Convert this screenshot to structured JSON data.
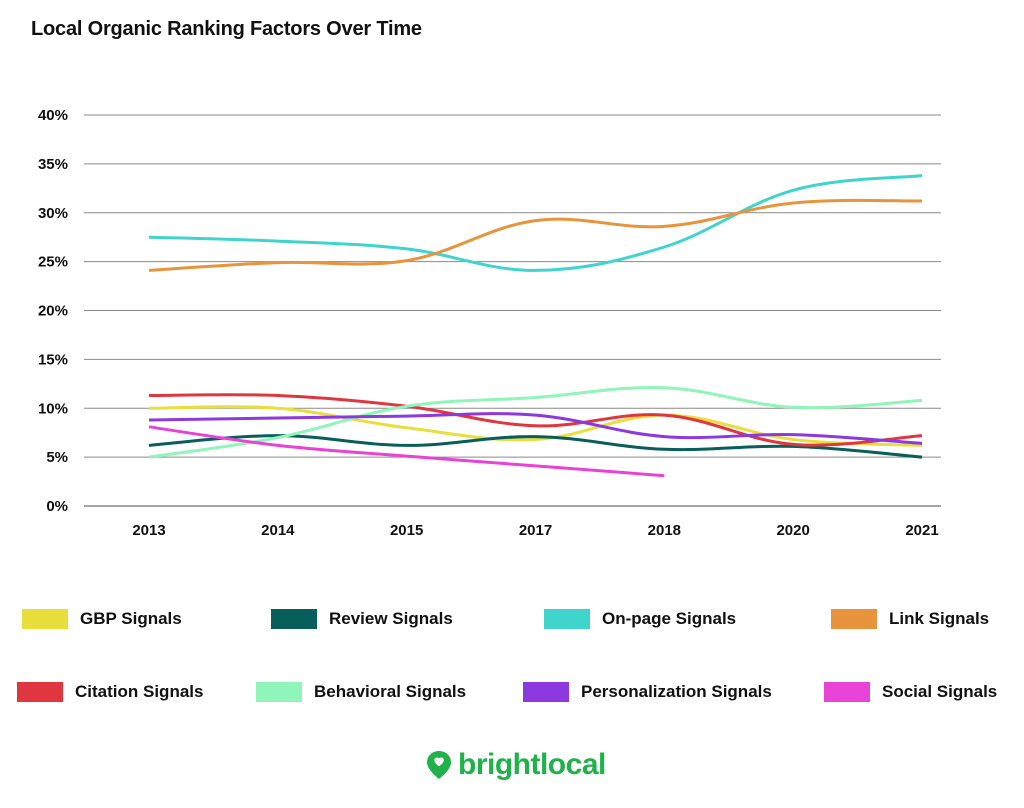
{
  "chart_data": {
    "type": "line",
    "title": "Local Organic Ranking Factors Over Time",
    "xlabel": "",
    "ylabel": "",
    "ylim": [
      0,
      40
    ],
    "y_ticks": [
      0,
      5,
      10,
      15,
      20,
      25,
      30,
      35,
      40
    ],
    "y_tick_labels": [
      "0%",
      "5%",
      "10%",
      "15%",
      "20%",
      "25%",
      "30%",
      "35%",
      "40%"
    ],
    "categories": [
      "2013",
      "2014",
      "2015",
      "2017",
      "2018",
      "2020",
      "2021"
    ],
    "grid": true,
    "legend_position": "bottom",
    "series": [
      {
        "name": "GBP Signals",
        "color": "#e8de3c",
        "values": [
          10,
          10,
          8,
          6.8,
          9.3,
          6.8,
          6.2
        ]
      },
      {
        "name": "Review Signals",
        "color": "#075e5b",
        "values": [
          6.2,
          7.2,
          6.2,
          7.1,
          5.8,
          6.1,
          5
        ]
      },
      {
        "name": "On-page Signals",
        "color": "#3fd5cd",
        "values": [
          27.5,
          27.1,
          26.3,
          24.1,
          26.5,
          32.3,
          33.8
        ]
      },
      {
        "name": "Link Signals",
        "color": "#e8943c",
        "values": [
          24.1,
          24.9,
          25.1,
          29.2,
          28.6,
          31,
          31.2
        ]
      },
      {
        "name": "Citation Signals",
        "color": "#e0363f",
        "values": [
          11.3,
          11.3,
          10.2,
          8.2,
          9.3,
          6.3,
          7.2
        ]
      },
      {
        "name": "Behavioral Signals",
        "color": "#8ff5b8",
        "values": [
          5,
          7,
          10.2,
          11.1,
          12.1,
          10.1,
          10.8
        ]
      },
      {
        "name": "Personalization Signals",
        "color": "#8c3ae0",
        "values": [
          8.8,
          9,
          9.2,
          9.3,
          7.1,
          7.3,
          6.4
        ]
      },
      {
        "name": "Social Signals",
        "color": "#e843d6",
        "values": [
          8.1,
          6.2,
          5.1,
          4.1,
          3.1,
          null,
          null
        ]
      }
    ]
  },
  "brand": {
    "name": "brightlocal",
    "color": "#1fb24a"
  }
}
